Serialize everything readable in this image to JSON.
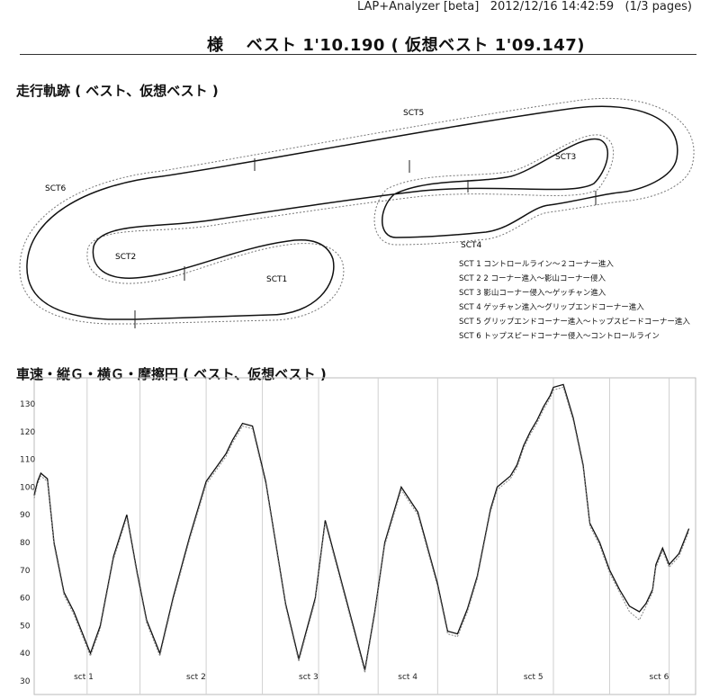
{
  "header": {
    "app": "LAP+Analyzer [beta]",
    "datetime": "2012/12/16 14:42:59",
    "pages": "(1/3 pages)"
  },
  "title": "様　 ベスト 1'10.190 ( 仮想ベスト 1'09.147)",
  "track_section": {
    "heading": "走行軌跡 ( ベスト、仮想ベスト )",
    "sector_labels": [
      "SCT1",
      "SCT2",
      "SCT3",
      "SCT4",
      "SCT5",
      "SCT6"
    ],
    "legend": [
      "SCT 1 コントロールライン～２コーナー進入",
      "SCT 2 2 コーナー進入～影山コーナー侵入",
      "SCT 3 影山コーナー侵入～ゲッチャン進入",
      "SCT 4 ゲッチャン進入～グリップエンドコーナー進入",
      "SCT 5 グリップエンドコーナー進入～トップスピードコーナー進入",
      "SCT 6 トップスピードコーナー侵入～コントロールライン"
    ]
  },
  "speed_section": {
    "heading": "車速・縦Ｇ・横Ｇ・摩擦円 ( ベスト、仮想ベスト )"
  },
  "chart_data": {
    "type": "line",
    "title": "",
    "xlabel": "",
    "ylabel": "",
    "ylim": [
      30,
      140
    ],
    "yticks": [
      30,
      40,
      50,
      60,
      70,
      80,
      90,
      100,
      110,
      120,
      130
    ],
    "sector_ticks": [
      "sct 1",
      "sct 2",
      "sct 3",
      "sct 4",
      "sct 5",
      "sct 6"
    ],
    "grid": "vertical",
    "x": [
      0,
      0.5,
      1,
      2,
      3,
      4.5,
      6,
      8.5,
      10,
      12,
      14,
      15.5,
      17,
      19,
      21,
      23.5,
      26,
      29,
      30,
      31.5,
      33,
      35,
      36.5,
      38,
      40,
      42.5,
      44,
      46,
      48,
      50,
      51.5,
      53,
      55.5,
      58,
      61,
      62.5,
      64,
      65.5,
      67,
      68,
      69,
      70,
      72,
      73,
      74,
      75,
      76,
      77,
      78,
      78.5,
      80,
      81.5,
      83,
      84,
      85.5,
      87,
      88.5,
      90,
      91.5,
      92.5,
      93.5,
      94,
      95,
      96,
      97.5,
      99
    ],
    "series": [
      {
        "name": "",
        "values": [
          97,
          102,
          105,
          103,
          80,
          62,
          55,
          40,
          50,
          75,
          90,
          70,
          52,
          40,
          60,
          82,
          102,
          112,
          117,
          123,
          122,
          102,
          80,
          58,
          38,
          60,
          88,
          70,
          52,
          34,
          55,
          80,
          100,
          91,
          65,
          48,
          47,
          56,
          68,
          80,
          92,
          100,
          104,
          108,
          115,
          120,
          124,
          129,
          133,
          136,
          137,
          125,
          108,
          87,
          80,
          70,
          63,
          57,
          55,
          58,
          63,
          72,
          78,
          72,
          76,
          85
        ]
      },
      {
        "name": "",
        "values": [
          96,
          101,
          104,
          102,
          79,
          61,
          54,
          39,
          49,
          74,
          89,
          69,
          51,
          39,
          59,
          81,
          101,
          111,
          116,
          122,
          121,
          101,
          79,
          57,
          37,
          59,
          87,
          69,
          51,
          33,
          54,
          79,
          99,
          90,
          64,
          47,
          46,
          55,
          67,
          79,
          91,
          99,
          103,
          107,
          114,
          119,
          123,
          128,
          132,
          135,
          136,
          124,
          107,
          86,
          79,
          69,
          62,
          55,
          52,
          57,
          62,
          71,
          77,
          71,
          75,
          84
        ]
      }
    ]
  }
}
